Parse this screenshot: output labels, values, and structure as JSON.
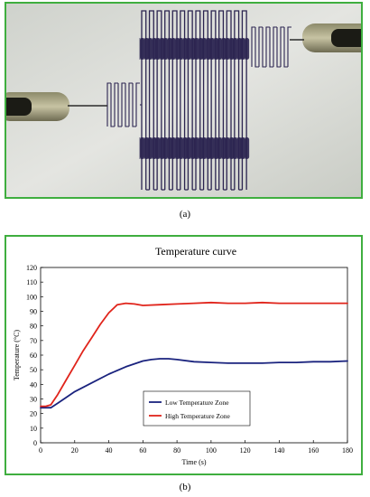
{
  "captions": {
    "a": "(a)",
    "b": "(b)"
  },
  "colors": {
    "frame": "#3fae3f",
    "low_series": "#1a237e",
    "high_series": "#e0241b",
    "trace": "#2b2450"
  },
  "photo": {
    "subject": "serpentine heater electrode with two probe tips"
  },
  "chart_data": {
    "type": "line",
    "title": "Temperature curve",
    "xlabel": "Time (s)",
    "ylabel": "Temperature (°C)",
    "xlim": [
      0,
      180
    ],
    "ylim": [
      0,
      120
    ],
    "xticks": [
      0,
      20,
      40,
      60,
      80,
      100,
      120,
      140,
      160,
      180
    ],
    "yticks": [
      0,
      10,
      20,
      30,
      40,
      50,
      60,
      70,
      80,
      90,
      100,
      110,
      120
    ],
    "grid": false,
    "legend_position": "center-right",
    "series": [
      {
        "name": "Low Temperature Zone",
        "color": "#1a237e",
        "x": [
          0,
          3,
          6,
          10,
          15,
          20,
          30,
          40,
          50,
          60,
          65,
          70,
          75,
          80,
          90,
          100,
          110,
          120,
          130,
          140,
          150,
          160,
          170,
          180
        ],
        "y": [
          24,
          24,
          24,
          27,
          31,
          35,
          41,
          47,
          52,
          56,
          57,
          57.5,
          57.5,
          57,
          55.5,
          55,
          54.5,
          54.5,
          54.5,
          55,
          55,
          55.5,
          55.5,
          56
        ]
      },
      {
        "name": "High Temperature Zone",
        "color": "#e0241b",
        "x": [
          0,
          3,
          6,
          10,
          15,
          20,
          25,
          30,
          35,
          40,
          45,
          50,
          55,
          60,
          70,
          80,
          90,
          100,
          110,
          120,
          130,
          140,
          150,
          160,
          170,
          180
        ],
        "y": [
          25,
          25,
          26,
          33,
          43,
          53,
          63,
          72,
          81,
          89,
          94.5,
          95.5,
          95,
          94,
          94.5,
          95,
          95.5,
          96,
          95.5,
          95.5,
          96,
          95.5,
          95.5,
          95.5,
          95.5,
          95.5
        ]
      }
    ]
  }
}
